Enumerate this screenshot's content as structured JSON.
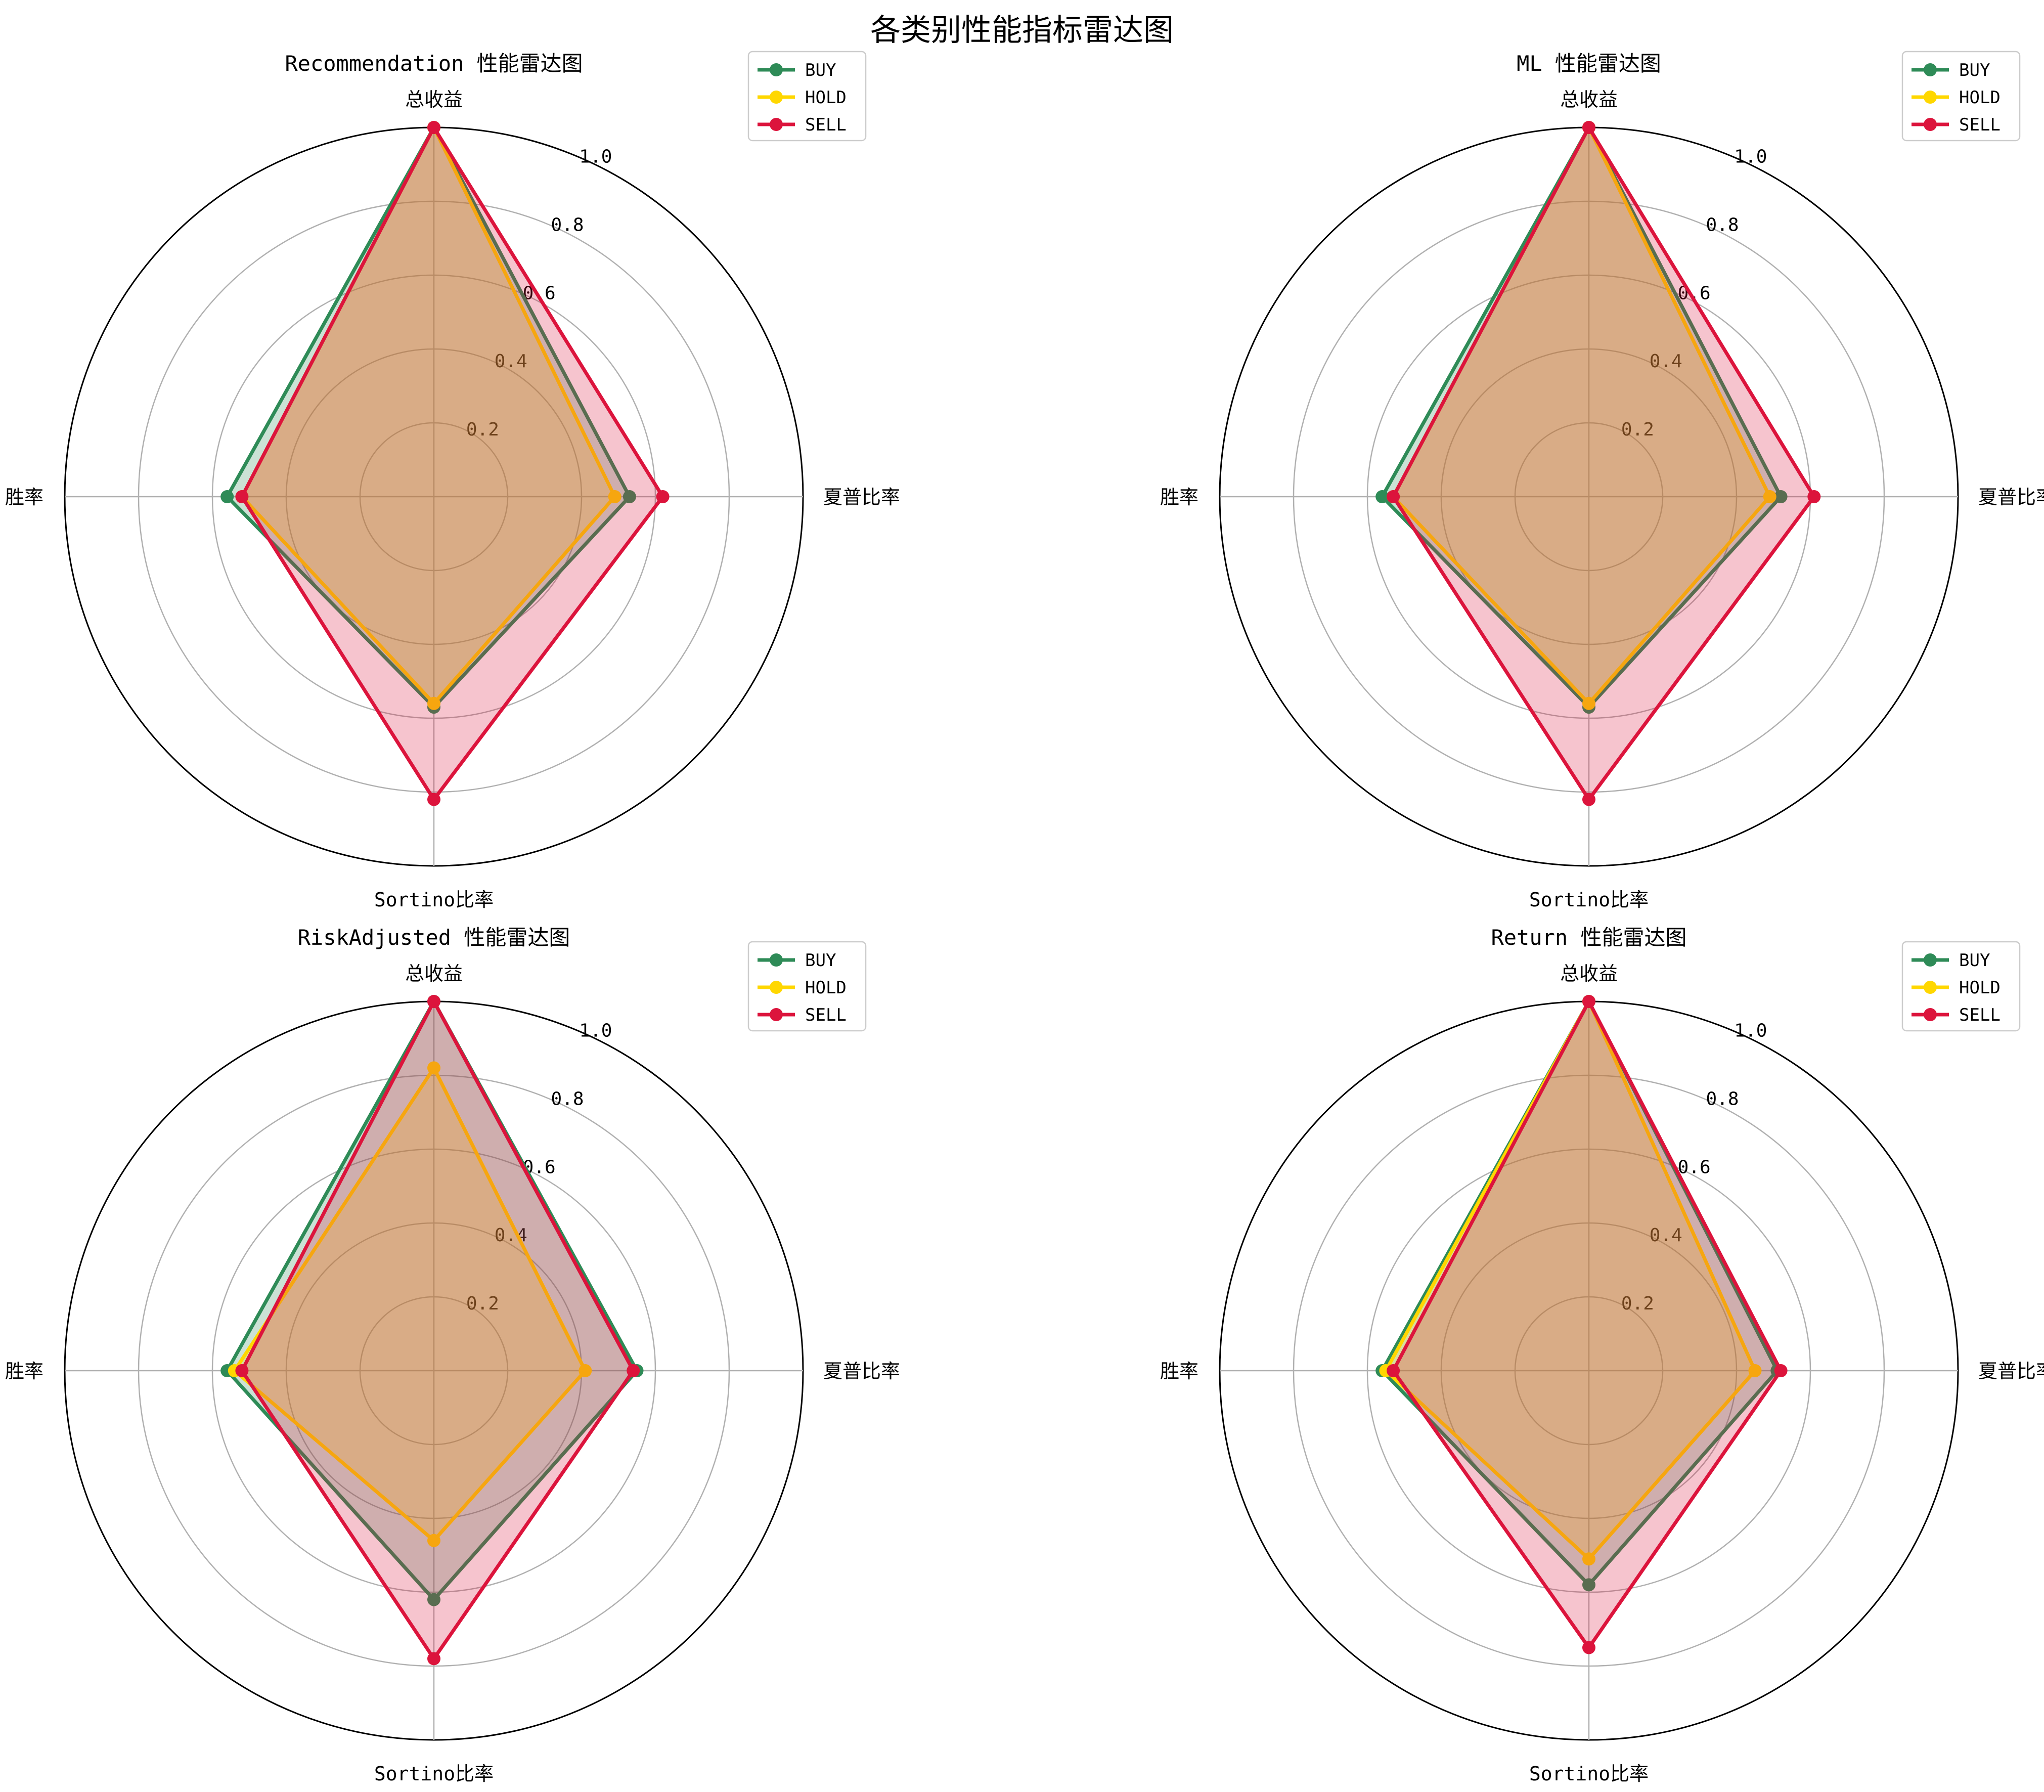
{
  "figure": {
    "title": "各类别性能指标雷达图"
  },
  "chart_data": [
    {
      "type": "radar",
      "title": "Recommendation 性能雷达图",
      "axes": [
        "总收益",
        "夏普比率",
        "Sortino比率",
        "胜率"
      ],
      "rlim": [
        0,
        1.0
      ],
      "rticks": [
        "0.2",
        "0.4",
        "0.6",
        "0.8",
        "1.0"
      ],
      "grid": true,
      "legend_position": "top-right",
      "series": [
        {
          "name": "BUY",
          "values": [
            1.0,
            0.53,
            0.57,
            0.56
          ]
        },
        {
          "name": "HOLD",
          "values": [
            1.0,
            0.49,
            0.56,
            0.52
          ]
        },
        {
          "name": "SELL",
          "values": [
            1.0,
            0.62,
            0.82,
            0.52
          ]
        }
      ]
    },
    {
      "type": "radar",
      "title": "ML 性能雷达图",
      "axes": [
        "总收益",
        "夏普比率",
        "Sortino比率",
        "胜率"
      ],
      "rlim": [
        0,
        1.0
      ],
      "rticks": [
        "0.2",
        "0.4",
        "0.6",
        "0.8",
        "1.0"
      ],
      "grid": true,
      "legend_position": "top-right",
      "series": [
        {
          "name": "BUY",
          "values": [
            1.0,
            0.52,
            0.57,
            0.56
          ]
        },
        {
          "name": "HOLD",
          "values": [
            1.0,
            0.49,
            0.56,
            0.53
          ]
        },
        {
          "name": "SELL",
          "values": [
            1.0,
            0.61,
            0.82,
            0.53
          ]
        }
      ]
    },
    {
      "type": "radar",
      "title": "RiskAdjusted 性能雷达图",
      "axes": [
        "总收益",
        "夏普比率",
        "Sortino比率",
        "胜率"
      ],
      "rlim": [
        0,
        1.0
      ],
      "rticks": [
        "0.2",
        "0.4",
        "0.6",
        "0.8",
        "1.0"
      ],
      "grid": true,
      "legend_position": "top-right",
      "series": [
        {
          "name": "BUY",
          "values": [
            1.0,
            0.55,
            0.62,
            0.56
          ]
        },
        {
          "name": "HOLD",
          "values": [
            0.82,
            0.41,
            0.46,
            0.54
          ]
        },
        {
          "name": "SELL",
          "values": [
            1.0,
            0.54,
            0.78,
            0.52
          ]
        }
      ]
    },
    {
      "type": "radar",
      "title": "Return 性能雷达图",
      "axes": [
        "总收益",
        "夏普比率",
        "Sortino比率",
        "胜率"
      ],
      "rlim": [
        0,
        1.0
      ],
      "rticks": [
        "0.2",
        "0.4",
        "0.6",
        "0.8",
        "1.0"
      ],
      "grid": true,
      "legend_position": "top-right",
      "series": [
        {
          "name": "BUY",
          "values": [
            1.0,
            0.51,
            0.58,
            0.56
          ]
        },
        {
          "name": "HOLD",
          "values": [
            1.0,
            0.45,
            0.51,
            0.55
          ]
        },
        {
          "name": "SELL",
          "values": [
            1.0,
            0.52,
            0.75,
            0.53
          ]
        }
      ]
    }
  ],
  "colors": {
    "BUY": "#2e8b57",
    "HOLD": "#ffd700",
    "SELL": "#dc143c",
    "grid": "#b0b0b0",
    "outer_ring": "#000000"
  }
}
